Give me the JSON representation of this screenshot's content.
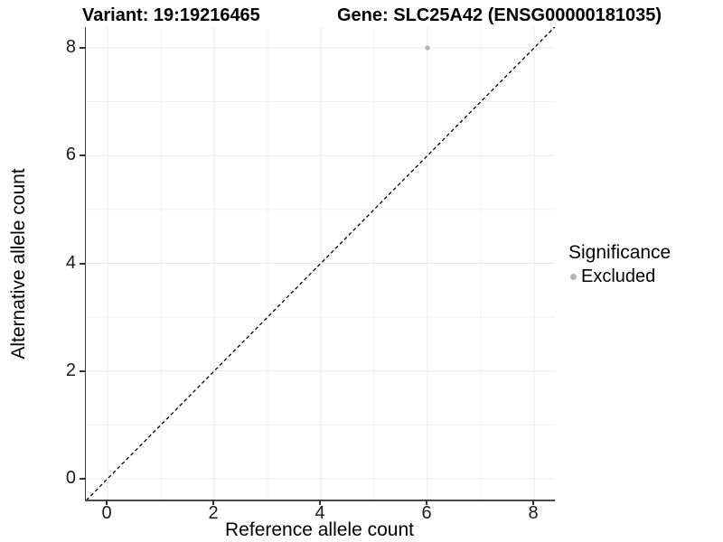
{
  "header": {
    "variant_title": "Variant: 19:19216465",
    "gene_title": "Gene: SLC25A42 (ENSG00000181035)"
  },
  "chart_data": {
    "type": "scatter",
    "title": "Variant: 19:19216465  |  Gene: SLC25A42 (ENSG00000181035)",
    "xlabel": "Reference allele count",
    "ylabel": "Alternative allele count",
    "xlim": [
      -0.4,
      8.4
    ],
    "ylim": [
      -0.4,
      8.4
    ],
    "x_ticks": [
      0,
      2,
      4,
      6,
      8
    ],
    "y_ticks": [
      0,
      2,
      4,
      6,
      8
    ],
    "x_minor_ticks": [
      1,
      3,
      5,
      7
    ],
    "y_minor_ticks": [
      1,
      3,
      5,
      7
    ],
    "grid": "major-and-minor",
    "identity_line": {
      "style": "dashed",
      "color": "#000000",
      "from": [
        -0.4,
        -0.4
      ],
      "to": [
        8.4,
        8.4
      ]
    },
    "series": [
      {
        "name": "Excluded",
        "color": "#b3b3b3",
        "points": [
          [
            6,
            8
          ]
        ]
      }
    ],
    "legend": {
      "title": "Significance",
      "position": "right",
      "entries": [
        {
          "label": "Excluded",
          "color": "#b3b3b3",
          "marker": "circle"
        }
      ]
    },
    "colors": {
      "grid_major": "#e9e9e9",
      "grid_minor": "#f1f1f1",
      "axis_line": "#3f3f3f",
      "point": "#b3b3b3",
      "text": "#000000"
    }
  }
}
